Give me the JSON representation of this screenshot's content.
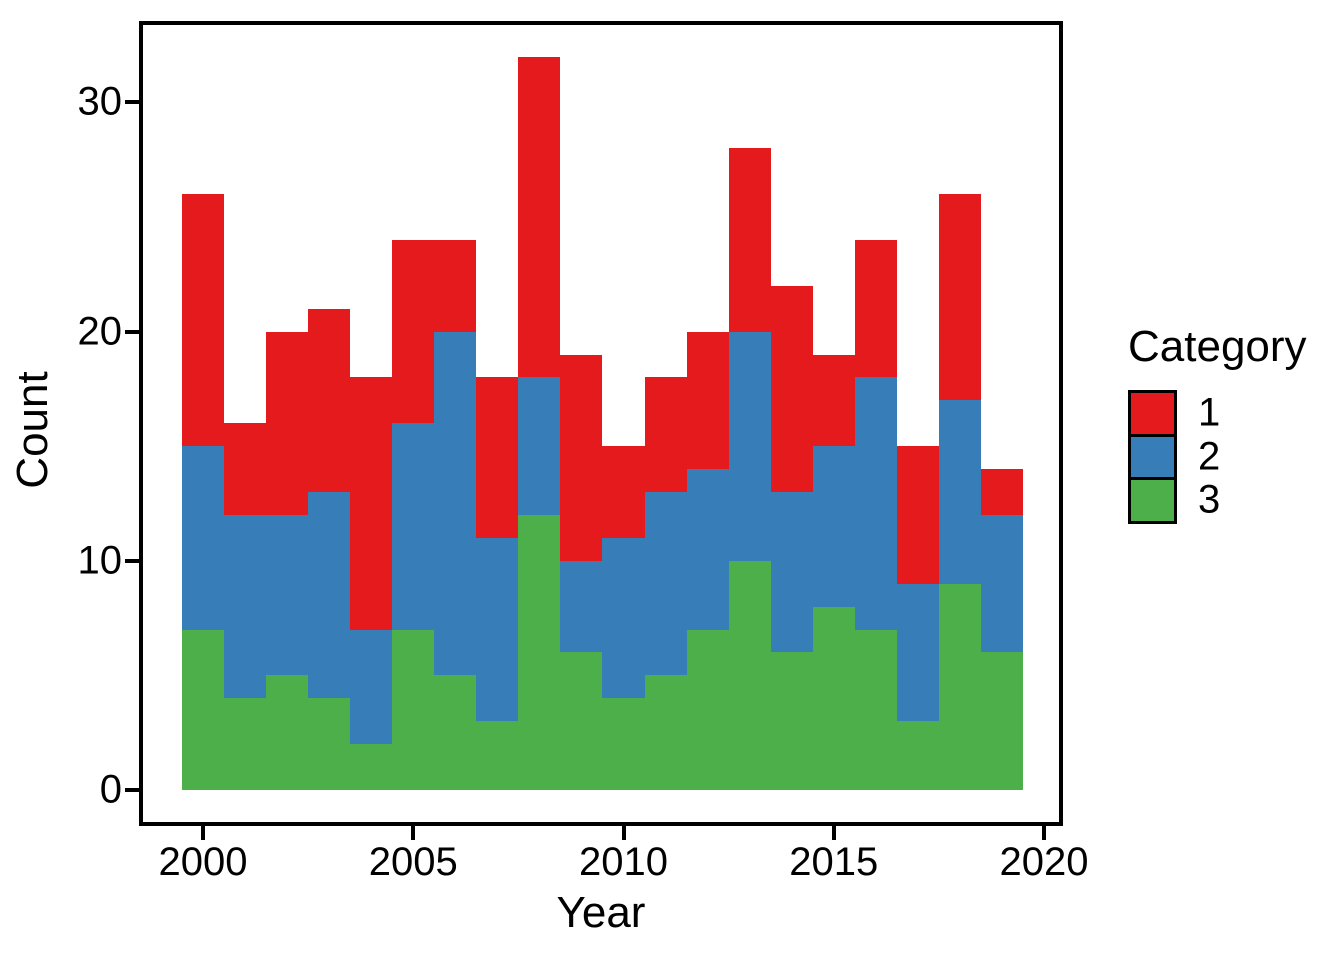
{
  "chart_data": {
    "type": "bar",
    "stacked": true,
    "title": "",
    "xlabel": "Year",
    "ylabel": "Count",
    "x": [
      2000,
      2001,
      2002,
      2003,
      2004,
      2005,
      2006,
      2007,
      2008,
      2009,
      2010,
      2011,
      2012,
      2013,
      2014,
      2015,
      2016,
      2017,
      2018,
      2019
    ],
    "series": [
      {
        "name": "1",
        "color": "#e41a1c",
        "values": [
          11,
          4,
          8,
          8,
          11,
          8,
          4,
          7,
          14,
          9,
          4,
          5,
          6,
          8,
          9,
          4,
          6,
          6,
          9,
          2
        ]
      },
      {
        "name": "2",
        "color": "#377eb8",
        "values": [
          8,
          8,
          7,
          9,
          5,
          9,
          15,
          8,
          6,
          4,
          7,
          8,
          7,
          10,
          7,
          7,
          11,
          6,
          8,
          6
        ]
      },
      {
        "name": "3",
        "color": "#4daf4a",
        "values": [
          7,
          4,
          5,
          4,
          2,
          7,
          5,
          3,
          12,
          6,
          4,
          5,
          7,
          10,
          6,
          8,
          7,
          3,
          9,
          6
        ]
      }
    ],
    "stack_order_bottom_to_top": [
      "3",
      "2",
      "1"
    ],
    "totals": [
      26,
      16,
      20,
      21,
      18,
      24,
      24,
      18,
      32,
      19,
      15,
      18,
      20,
      28,
      22,
      19,
      24,
      15,
      26,
      14
    ],
    "x_ticks": [
      "2000",
      "2005",
      "2010",
      "2015",
      "2020"
    ],
    "x_tick_years": [
      2000,
      2005,
      2010,
      2015,
      2020
    ],
    "y_ticks": [
      "0",
      "10",
      "20",
      "30"
    ],
    "y_tick_values": [
      0,
      10,
      20,
      30
    ],
    "ylim": [
      0,
      33.5
    ],
    "xlim": [
      1999.5,
      2020.5
    ],
    "grid": false,
    "legend_position": "right",
    "bin_width": 1
  },
  "legend": {
    "title": "Category",
    "items": [
      {
        "label": "1",
        "color": "#e41a1c"
      },
      {
        "label": "2",
        "color": "#377eb8"
      },
      {
        "label": "3",
        "color": "#4daf4a"
      }
    ]
  },
  "colors": {
    "background": "#ffffff",
    "panel_border": "#000000",
    "text": "#000000",
    "red": "#e41a1c",
    "blue": "#377eb8",
    "green": "#4daf4a"
  }
}
